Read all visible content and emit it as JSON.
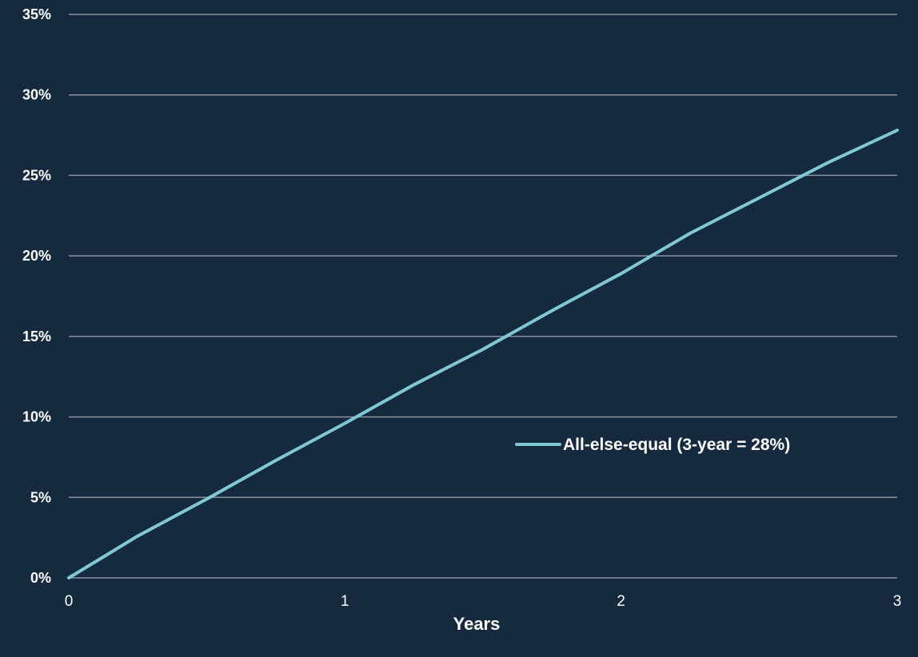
{
  "chart_data": {
    "type": "line",
    "xlabel": "Years",
    "ylabel": "",
    "xlim": [
      0,
      3
    ],
    "ylim": [
      0,
      35
    ],
    "x_ticks": [
      0,
      1,
      2,
      3
    ],
    "x_tick_labels": [
      "0",
      "1",
      "2",
      "3"
    ],
    "y_ticks": [
      0,
      5,
      10,
      15,
      20,
      25,
      30,
      35
    ],
    "y_tick_labels": [
      "0%",
      "5%",
      "10%",
      "15%",
      "20%",
      "25%",
      "30%",
      "35%"
    ],
    "grid": "horizontal",
    "legend_position": "right-middle",
    "series": [
      {
        "name": "All-else-equal (3-year = 28%)",
        "color": "#7fc8d6",
        "x": [
          0,
          0.25,
          0.5,
          0.75,
          1.0,
          1.25,
          1.5,
          1.75,
          2.0,
          2.25,
          2.5,
          2.75,
          3.0
        ],
        "y": [
          0,
          2.6,
          4.9,
          7.3,
          9.6,
          12.0,
          14.2,
          16.6,
          18.9,
          21.4,
          23.6,
          25.8,
          27.8
        ]
      }
    ]
  }
}
